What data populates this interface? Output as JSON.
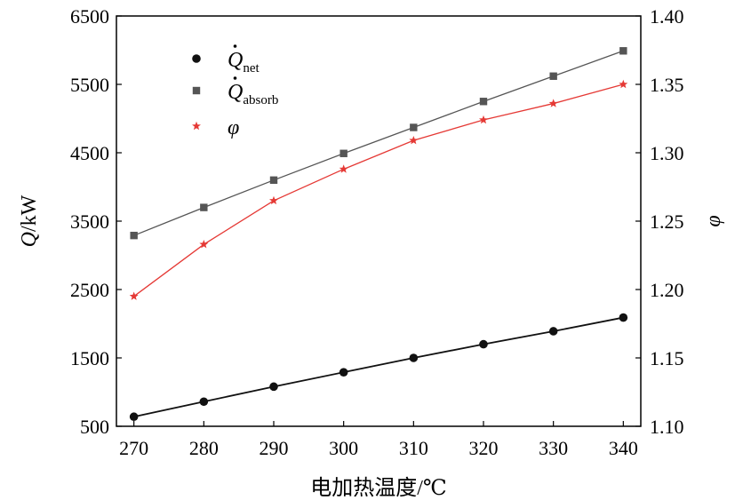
{
  "chart_data": {
    "type": "line",
    "x": [
      270,
      280,
      290,
      300,
      310,
      320,
      330,
      340
    ],
    "xticks": [
      "270",
      "280",
      "290",
      "300",
      "310",
      "320",
      "330",
      "340"
    ],
    "xlim": [
      267.5,
      342.5
    ],
    "xlabel": "电加热温度/℃",
    "ylabel_left": {
      "main": "Q",
      "unit": "/kW"
    },
    "ylabel_right": "φ",
    "ylim_left": [
      500,
      6500
    ],
    "ylim_right": [
      1.1,
      1.4
    ],
    "yticks_left": [
      "500",
      "1500",
      "2500",
      "3500",
      "4500",
      "5500",
      "6500"
    ],
    "yticks_right": [
      "1.10",
      "1.15",
      "1.20",
      "1.25",
      "1.30",
      "1.35",
      "1.40"
    ],
    "grid": false,
    "legend_position": "top-left",
    "series": [
      {
        "key": "net",
        "name": "Q",
        "name_sub": "net",
        "axis": "left",
        "marker": "circle",
        "color": "#111111",
        "values": [
          640,
          860,
          1080,
          1290,
          1500,
          1700,
          1890,
          2090
        ]
      },
      {
        "key": "absorb",
        "name": "Q",
        "name_sub": "absorb",
        "axis": "left",
        "marker": "square",
        "color": "#555555",
        "values": [
          3290,
          3700,
          4100,
          4490,
          4870,
          5250,
          5620,
          5990
        ]
      },
      {
        "key": "phi",
        "name": "φ",
        "name_sub": "",
        "axis": "right",
        "marker": "star",
        "color": "#e53935",
        "values": [
          1.195,
          1.233,
          1.265,
          1.288,
          1.309,
          1.324,
          1.336,
          1.35
        ]
      }
    ]
  }
}
